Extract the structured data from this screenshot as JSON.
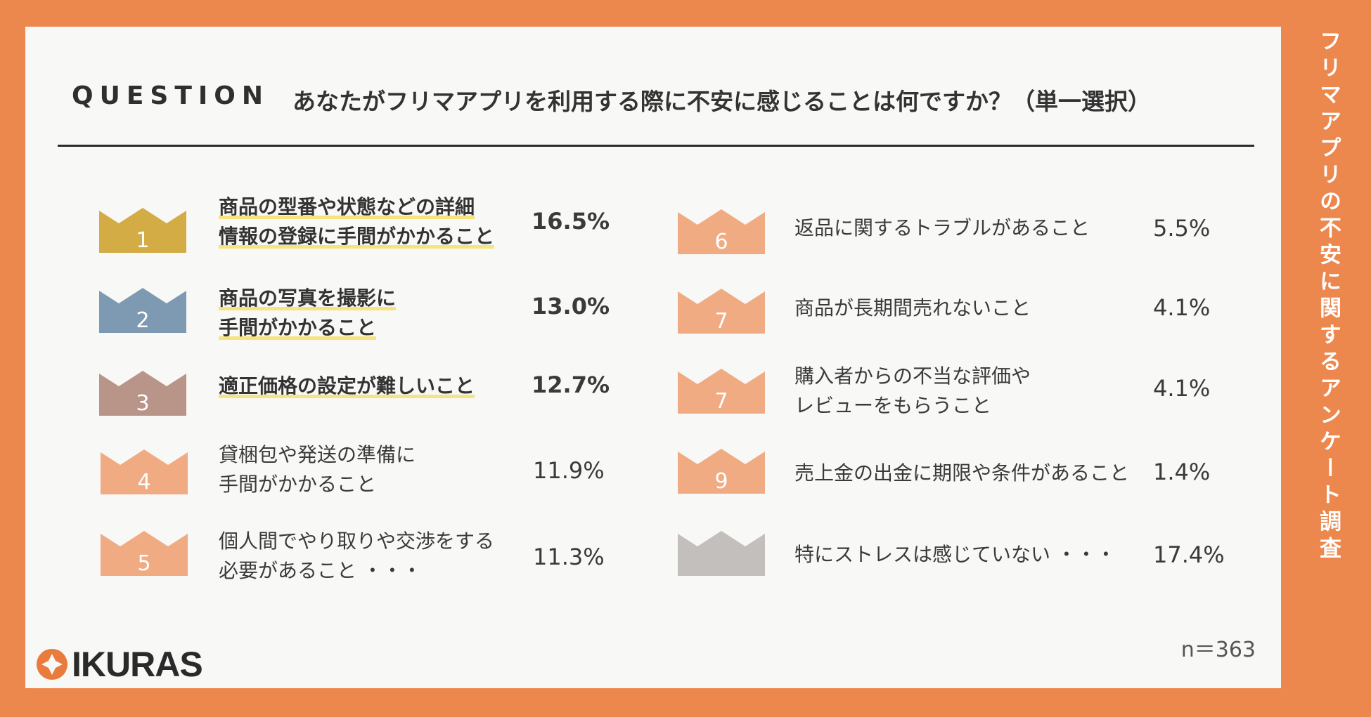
{
  "question_label": "QUESTION",
  "question_text": "あなたがフリマアプリを利用する際に不安に感じることは何ですか？（単一選択）",
  "side_title": "フリマアプリの不安に関するアンケート調査",
  "sample_size": "n＝363",
  "logo_text": "IKURAS",
  "chart_data": {
    "type": "table",
    "title": "あなたがフリマアプリを利用する際に不安に感じることは何ですか？（単一選択）",
    "n": 363,
    "items": [
      {
        "rank": "1",
        "lines": [
          "商品の型番や状態などの詳細",
          "情報の登録に手間がかかること"
        ],
        "value": 16.5,
        "value_label": "16.5%",
        "color": "#D4AC45",
        "emphasis": true
      },
      {
        "rank": "2",
        "lines": [
          "商品の写真を撮影に",
          "手間がかかること"
        ],
        "value": 13.0,
        "value_label": "13.0%",
        "color": "#7E9AB2",
        "emphasis": true
      },
      {
        "rank": "3",
        "lines": [
          "適正価格の設定が難しいこと"
        ],
        "value": 12.7,
        "value_label": "12.7%",
        "color": "#B89489",
        "emphasis": true
      },
      {
        "rank": "4",
        "lines": [
          "貸梱包や発送の準備に",
          "手間がかかること"
        ],
        "value": 11.9,
        "value_label": "11.9%",
        "color": "#F0AB83",
        "emphasis": false
      },
      {
        "rank": "5",
        "lines": [
          "個人間でやり取りや交渉をする",
          "必要があること ・・・"
        ],
        "value": 11.3,
        "value_label": "11.3%",
        "color": "#F0AB83",
        "emphasis": false
      },
      {
        "rank": "6",
        "lines": [
          "返品に関するトラブルがあること"
        ],
        "value": 5.5,
        "value_label": "5.5%",
        "color": "#F0AB83",
        "emphasis": false
      },
      {
        "rank": "7",
        "lines": [
          "商品が長期間売れないこと"
        ],
        "value": 4.1,
        "value_label": "4.1%",
        "color": "#F0AB83",
        "emphasis": false
      },
      {
        "rank": "7",
        "lines": [
          "購入者からの不当な評価や",
          "レビューをもらうこと"
        ],
        "value": 4.1,
        "value_label": "4.1%",
        "color": "#F0AB83",
        "emphasis": false
      },
      {
        "rank": "9",
        "lines": [
          "売上金の出金に期限や条件があること"
        ],
        "value": 1.4,
        "value_label": "1.4%",
        "color": "#F0AB83",
        "emphasis": false
      },
      {
        "rank": "",
        "lines": [
          "特にストレスは感じていない ・・・"
        ],
        "value": 17.4,
        "value_label": "17.4%",
        "color": "#C3BFBD",
        "emphasis": false
      }
    ]
  }
}
